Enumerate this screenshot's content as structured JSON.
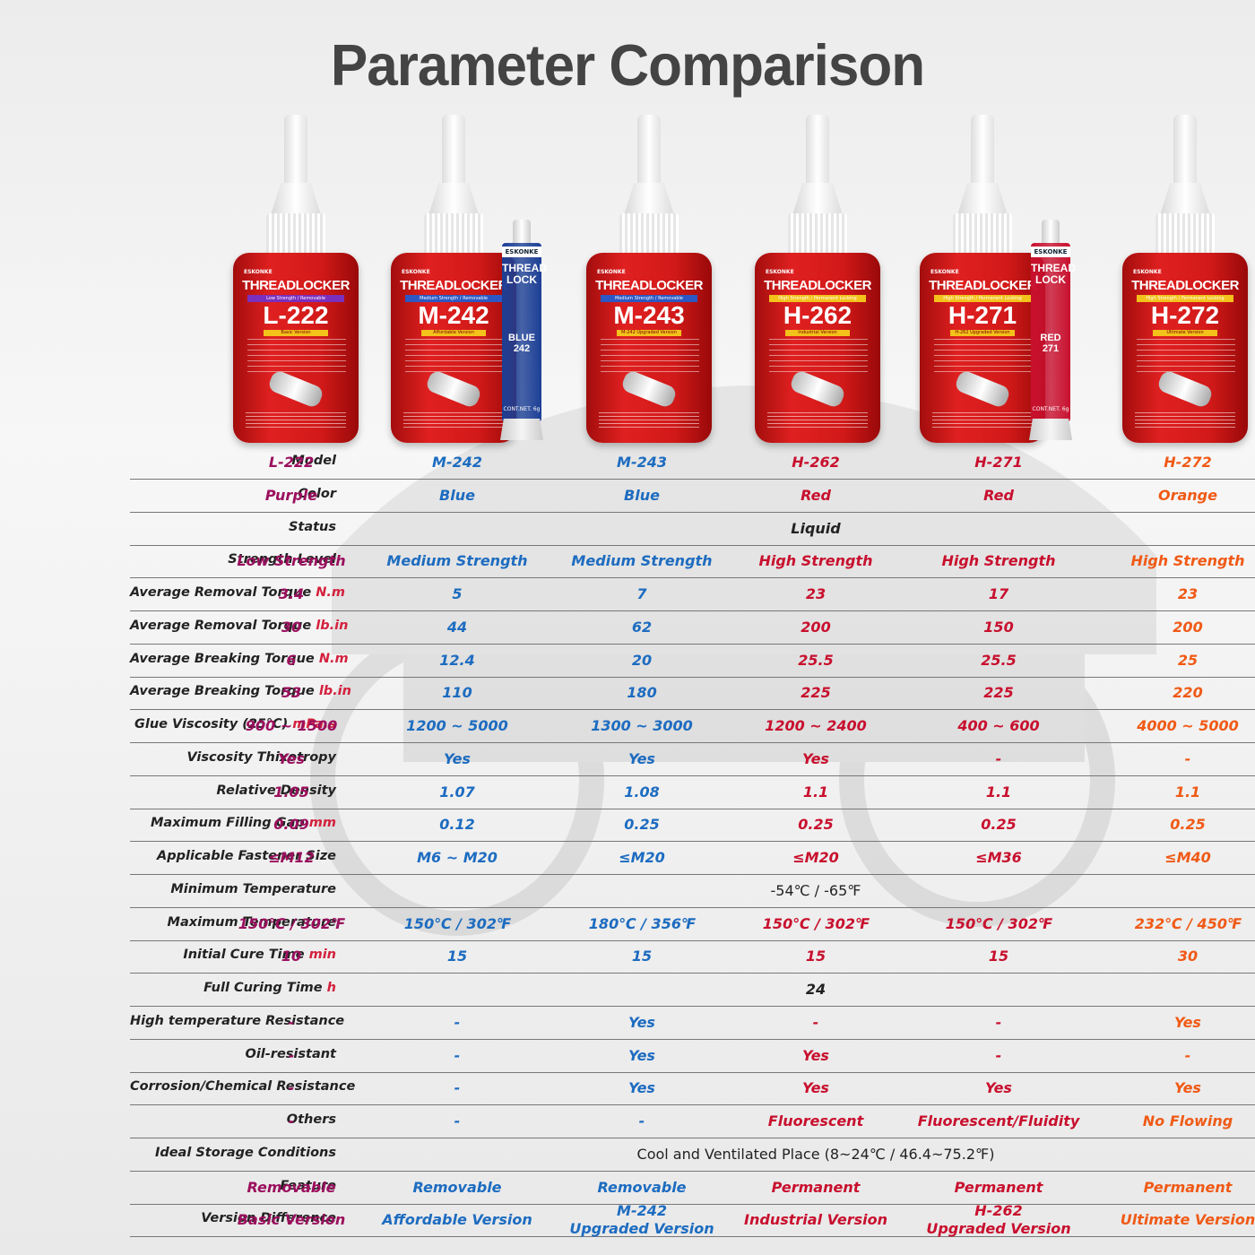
{
  "title": "Parameter Comparison",
  "colors": {
    "purple": "#9b0f5e",
    "blue": "#1d6cc0",
    "red": "#c8102e",
    "orange": "#f05a16",
    "bottle_red": "#d21919",
    "tube_blue": "#1c3f95",
    "tube_red": "#c8102e"
  },
  "products": [
    {
      "brand": "ESKONKE",
      "name": "THREADLOCKER",
      "strength": "Low Strength / Removable",
      "model": "L-222",
      "version": "Basic Version",
      "strip_color": "#7b2fbe"
    },
    {
      "brand": "ESKONKE",
      "name": "THREADLOCKER",
      "strength": "Medium Strength / Removable",
      "model": "M-242",
      "version": "Affordable Version",
      "strip_color": "#2b58c4"
    },
    {
      "brand": "ESKONKE",
      "name": "THREADLOCKER",
      "strength": "Medium Strength / Removable",
      "model": "M-243",
      "version": "M-242 Upgraded Version",
      "strip_color": "#2b58c4"
    },
    {
      "brand": "ESKONKE",
      "name": "THREADLOCKER",
      "strength": "High Strength / Permanent Locking",
      "model": "H-262",
      "version": "Industrial Version",
      "strip_color": "#f3c21b"
    },
    {
      "brand": "ESKONKE",
      "name": "THREADLOCKER",
      "strength": "High Strength / Permanent Locking",
      "model": "H-271",
      "version": "H-262 Upgraded Version",
      "strip_color": "#f3c21b"
    },
    {
      "brand": "ESKONKE",
      "name": "THREADLOCKER",
      "strength": "High Strength / Permanent Locking",
      "model": "H-272",
      "version": "Ultimate Version",
      "strip_color": "#f3c21b"
    }
  ],
  "tubes": [
    {
      "brand": "ESKONKE",
      "name": "THREAD LOCK",
      "code": "BLUE 242",
      "content": "CONT.NET. 6g"
    },
    {
      "brand": "ESKONKE",
      "name": "THREAD LOCK",
      "code": "RED 271",
      "content": "CONT.NET. 6g"
    }
  ],
  "table": {
    "rows": [
      {
        "label": "Model",
        "unit": "",
        "values": [
          "L-222",
          "M-242",
          "M-243",
          "H-262",
          "H-271",
          "H-272"
        ]
      },
      {
        "label": "Color",
        "unit": "",
        "values": [
          "Purple",
          "Blue",
          "Blue",
          "Red",
          "Red",
          "Orange"
        ]
      },
      {
        "label": "Status",
        "unit": "",
        "span": "Liquid"
      },
      {
        "label": "Strength Level",
        "unit": "",
        "values": [
          "Low Strength",
          "Medium Strength",
          "Medium Strength",
          "High Strength",
          "High Strength",
          "High Strength"
        ]
      },
      {
        "label": "Average Removal Torque ",
        "unit": "N.m",
        "values": [
          "3.4",
          "5",
          "7",
          "23",
          "17",
          "23"
        ]
      },
      {
        "label": "Average Removal Torque ",
        "unit": "lb.in",
        "values": [
          "30",
          "44",
          "62",
          "200",
          "150",
          "200"
        ]
      },
      {
        "label": "Average Breaking Torque ",
        "unit": "N.m",
        "values": [
          "6",
          "12.4",
          "20",
          "25.5",
          "25.5",
          "25"
        ]
      },
      {
        "label": "Average Breaking Torque ",
        "unit": "lb.in",
        "values": [
          "53",
          "110",
          "180",
          "225",
          "225",
          "220"
        ]
      },
      {
        "label": "Glue Viscosity (25℃) ",
        "unit": "mPa.s",
        "values": [
          "900 ~ 1500",
          "1200 ~ 5000",
          "1300 ~ 3000",
          "1200 ~ 2400",
          "400 ~ 600",
          "4000 ~ 5000"
        ]
      },
      {
        "label": "Viscosity Thixotropy",
        "unit": "",
        "values": [
          "Yes",
          "Yes",
          "Yes",
          "Yes",
          "-",
          "-"
        ]
      },
      {
        "label": "Relative Density",
        "unit": "",
        "values": [
          "1.05",
          "1.07",
          "1.08",
          "1.1",
          "1.1",
          "1.1"
        ]
      },
      {
        "label": "Maximum Filling Gap ",
        "unit": "mm",
        "values": [
          "0.09",
          "0.12",
          "0.25",
          "0.25",
          "0.25",
          "0.25"
        ]
      },
      {
        "label": "Applicable Fastener Size",
        "unit": "",
        "values": [
          "≤M12",
          "M6 ~ M20",
          "≤M20",
          "≤M20",
          "≤M36",
          "≤M40"
        ]
      },
      {
        "label": "Minimum Temperature",
        "unit": "",
        "span": "-54℃ / -65℉",
        "plain": true
      },
      {
        "label": "Maximum Temperature",
        "unit": "",
        "values": [
          "150℃ / 302℉",
          "150℃ / 302℉",
          "180℃ / 356℉",
          "150℃ / 302℉",
          "150℃ / 302℉",
          "232℃ / 450℉"
        ]
      },
      {
        "label": "Initial Cure Time ",
        "unit": "min",
        "values": [
          "10",
          "15",
          "15",
          "15",
          "15",
          "30"
        ]
      },
      {
        "label": "Full Curing Time ",
        "unit": "h",
        "span": "24"
      },
      {
        "label": "High temperature Resistance",
        "unit": "",
        "values": [
          "-",
          "-",
          "Yes",
          "-",
          "-",
          "Yes"
        ]
      },
      {
        "label": "Oil-resistant",
        "unit": "",
        "values": [
          "-",
          "-",
          "Yes",
          "Yes",
          "-",
          "-"
        ]
      },
      {
        "label": "Corrosion/Chemical Resistance",
        "unit": "",
        "values": [
          "-",
          "-",
          "Yes",
          "Yes",
          "Yes",
          "Yes"
        ]
      },
      {
        "label": "Others",
        "unit": "",
        "values": [
          "-",
          "-",
          "-",
          "Fluorescent",
          "Fluorescent/Fluidity",
          "No Flowing"
        ]
      },
      {
        "label": "Ideal Storage Conditions",
        "unit": "",
        "span": "Cool and Ventilated Place (8~24℃ / 46.4~75.2℉)",
        "plain": true
      },
      {
        "label": "Feature",
        "unit": "",
        "values": [
          "Removable",
          "Removable",
          "Removable",
          "Permanent",
          "Permanent",
          "Permanent"
        ]
      },
      {
        "label": "Version Difference",
        "unit": "",
        "values": [
          "Basic Version",
          "Affordable Version",
          "M-242 Upgraded Version",
          "Industrial Version",
          "H-262 Upgraded Version",
          "Ultimate Version"
        ]
      }
    ]
  }
}
